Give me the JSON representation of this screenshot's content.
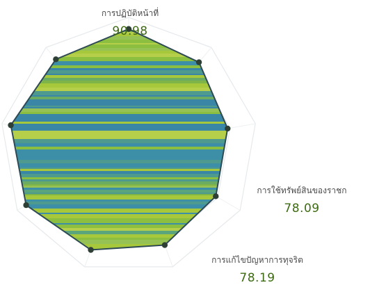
{
  "chart_data": {
    "type": "radar",
    "categories": [
      "การปฏิบัติหน้าที่",
      "",
      "การใช้ทรัพย์สินของราชก",
      "การแก้ไขปัญหาการทุจริต",
      "",
      "",
      "",
      "",
      ""
    ],
    "series": [
      {
        "values": [
          90.98,
          85,
          78.09,
          78.19,
          82,
          86,
          92,
          93,
          88
        ]
      }
    ],
    "labels": [
      {
        "name": "การปฏิบัติหน้าที่",
        "value": "90.98"
      },
      {
        "name": "การใช้ทรัพย์สินของราชก",
        "value": "78.09"
      },
      {
        "name": "การแก้ไขปัญหาการทุจริต",
        "value": "78.19"
      }
    ],
    "rlim": [
      0,
      100
    ],
    "colors": {
      "fill_light": "#a9c93a",
      "fill_teal": "#3f8aa0",
      "stroke": "#2d4a55",
      "dot": "#2e3f35"
    }
  }
}
